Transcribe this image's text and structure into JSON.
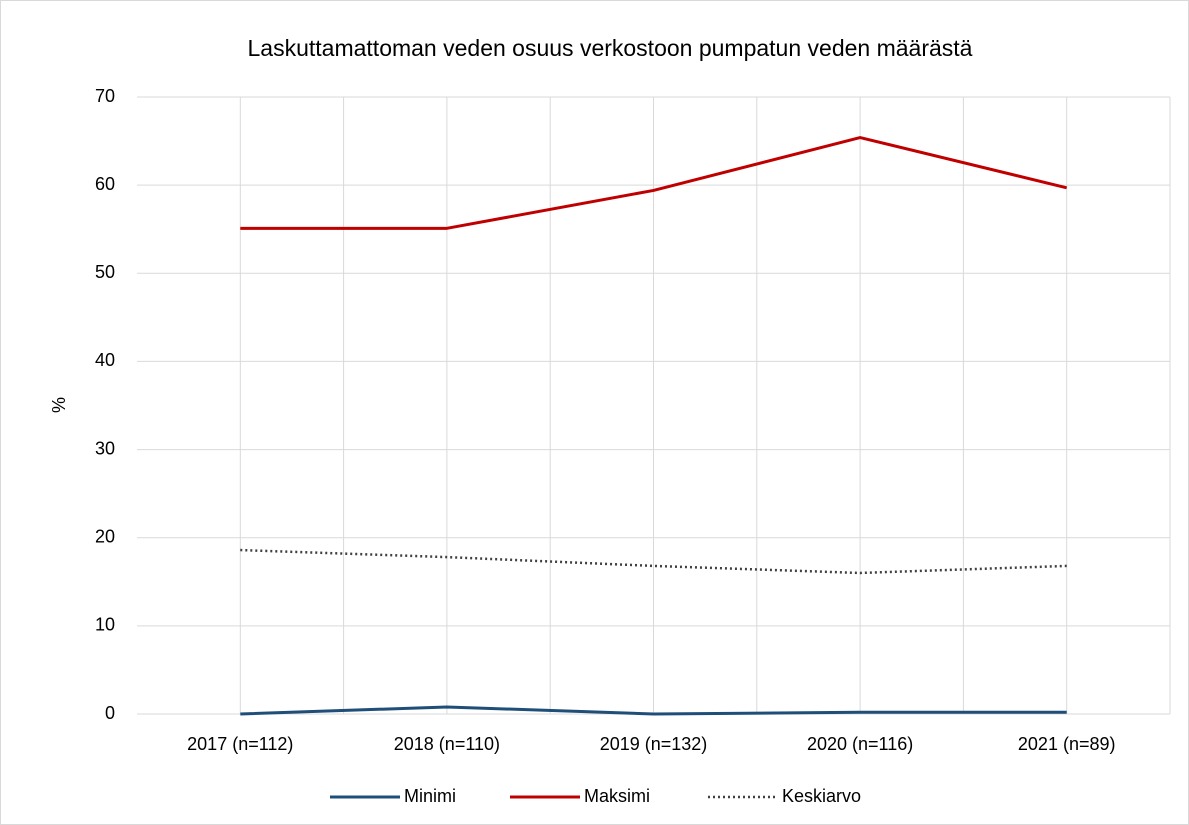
{
  "chart_data": {
    "type": "line",
    "title": "Laskuttamattoman veden osuus verkostoon pumpatun veden määrästä",
    "y_label": "%",
    "categories": [
      "2017 (n=112)",
      "2018 (n=110)",
      "2019 (n=132)",
      "2020 (n=116)",
      "2021 (n=89)"
    ],
    "series": [
      {
        "name": "Minimi",
        "color": "#1f4e79",
        "dash": "solid",
        "values": [
          0,
          0.8,
          0,
          0.2,
          0.2
        ]
      },
      {
        "name": "Maksimi",
        "color": "#c00000",
        "dash": "solid",
        "values": [
          55.1,
          55.1,
          59.4,
          65.4,
          59.7
        ]
      },
      {
        "name": "Keskiarvo",
        "color": "#404040",
        "dash": "dotted",
        "values": [
          18.6,
          17.8,
          16.8,
          16.0,
          16.8
        ]
      }
    ],
    "ylim": [
      0,
      70
    ],
    "yticks": [
      0,
      10,
      20,
      30,
      40,
      50,
      60,
      70
    ],
    "grid": true,
    "legend": "bottom"
  }
}
